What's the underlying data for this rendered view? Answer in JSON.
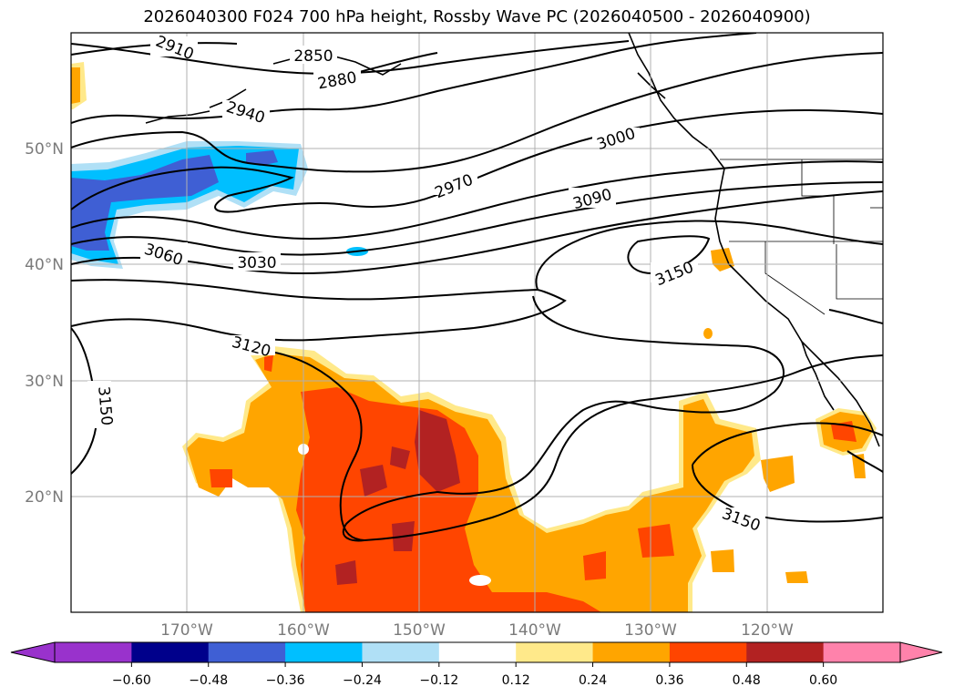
{
  "title": "2026040300 F024 700 hPa height, Rossby Wave PC (2026040500 - 2026040900)",
  "map": {
    "lat_labels": [
      "50°N",
      "40°N",
      "30°N",
      "20°N"
    ],
    "lon_labels": [
      "170°W",
      "160°W",
      "150°W",
      "140°W",
      "130°W",
      "120°W"
    ],
    "contour_labels": [
      "2910",
      "2850",
      "2880",
      "2940",
      "3000",
      "2970",
      "3090",
      "3060",
      "3030",
      "3150",
      "3120",
      "3150",
      "3150"
    ]
  },
  "colorbar": {
    "ticks": [
      "−0.60",
      "−0.48",
      "−0.36",
      "−0.24",
      "−0.12",
      "0.12",
      "0.24",
      "0.36",
      "0.48",
      "0.60"
    ],
    "colors": [
      "#9932cc",
      "#9932cc",
      "#00008b",
      "#3f5fd4",
      "#00bfff",
      "#b0e0f6",
      "#ffffff",
      "#ffe98a",
      "#ffa500",
      "#ff4500",
      "#b22222",
      "#ff82ab",
      "#ff82ab"
    ]
  }
}
